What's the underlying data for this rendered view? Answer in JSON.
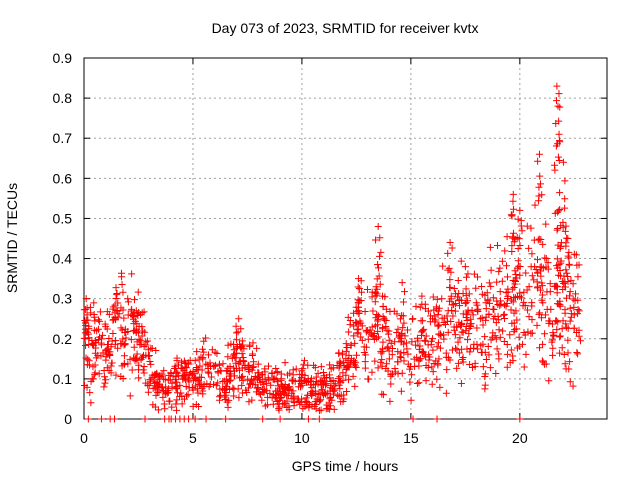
{
  "chart_data": {
    "type": "scatter",
    "title": "Day 073 of 2023, SRMTID for receiver kvtx",
    "xlabel": "GPS time / hours",
    "ylabel": "SRMTID / TECUs",
    "xlim": [
      0,
      24
    ],
    "ylim": [
      0,
      0.9
    ],
    "xticks": [
      0,
      5,
      10,
      15,
      20
    ],
    "yticks": [
      0,
      0.1,
      0.2,
      0.3,
      0.4,
      0.5,
      0.6,
      0.7,
      0.8,
      0.9
    ],
    "xtick_labels": [
      "0",
      "5",
      "10",
      "15",
      "20"
    ],
    "ytick_labels": [
      "0",
      "0.1",
      "0.2",
      "0.3",
      "0.4",
      "0.5",
      "0.6",
      "0.7",
      "0.8",
      "0.9"
    ],
    "grid": true,
    "marker": "plus",
    "color": "#ff0000",
    "trend": [
      {
        "x": 0.0,
        "y": 0.2
      },
      {
        "x": 0.5,
        "y": 0.19
      },
      {
        "x": 1.0,
        "y": 0.17
      },
      {
        "x": 1.5,
        "y": 0.24
      },
      {
        "x": 2.0,
        "y": 0.2
      },
      {
        "x": 2.5,
        "y": 0.21
      },
      {
        "x": 3.0,
        "y": 0.12
      },
      {
        "x": 3.5,
        "y": 0.08
      },
      {
        "x": 4.0,
        "y": 0.07
      },
      {
        "x": 4.5,
        "y": 0.1
      },
      {
        "x": 5.0,
        "y": 0.11
      },
      {
        "x": 5.5,
        "y": 0.12
      },
      {
        "x": 6.0,
        "y": 0.1
      },
      {
        "x": 6.5,
        "y": 0.09
      },
      {
        "x": 7.0,
        "y": 0.14
      },
      {
        "x": 7.5,
        "y": 0.13
      },
      {
        "x": 8.0,
        "y": 0.1
      },
      {
        "x": 8.5,
        "y": 0.08
      },
      {
        "x": 9.0,
        "y": 0.07
      },
      {
        "x": 9.5,
        "y": 0.07
      },
      {
        "x": 10.0,
        "y": 0.08
      },
      {
        "x": 10.5,
        "y": 0.08
      },
      {
        "x": 11.0,
        "y": 0.07
      },
      {
        "x": 11.5,
        "y": 0.08
      },
      {
        "x": 12.0,
        "y": 0.13
      },
      {
        "x": 12.5,
        "y": 0.2
      },
      {
        "x": 13.0,
        "y": 0.2
      },
      {
        "x": 13.5,
        "y": 0.23
      },
      {
        "x": 14.0,
        "y": 0.2
      },
      {
        "x": 14.5,
        "y": 0.17
      },
      {
        "x": 15.0,
        "y": 0.16
      },
      {
        "x": 15.5,
        "y": 0.2
      },
      {
        "x": 16.0,
        "y": 0.21
      },
      {
        "x": 16.5,
        "y": 0.22
      },
      {
        "x": 17.0,
        "y": 0.23
      },
      {
        "x": 17.5,
        "y": 0.23
      },
      {
        "x": 18.0,
        "y": 0.24
      },
      {
        "x": 18.5,
        "y": 0.24
      },
      {
        "x": 19.0,
        "y": 0.25
      },
      {
        "x": 19.5,
        "y": 0.3
      },
      {
        "x": 20.0,
        "y": 0.28
      },
      {
        "x": 20.5,
        "y": 0.32
      },
      {
        "x": 21.0,
        "y": 0.33
      },
      {
        "x": 21.5,
        "y": 0.25
      },
      {
        "x": 22.0,
        "y": 0.3
      },
      {
        "x": 22.5,
        "y": 0.26
      },
      {
        "x": 22.8,
        "y": 0.25
      }
    ],
    "peaks": [
      {
        "x": 0.1,
        "y": 0.3
      },
      {
        "x": 1.5,
        "y": 0.31
      },
      {
        "x": 2.4,
        "y": 0.27
      },
      {
        "x": 7.1,
        "y": 0.25
      },
      {
        "x": 12.6,
        "y": 0.35
      },
      {
        "x": 13.5,
        "y": 0.48
      },
      {
        "x": 14.6,
        "y": 0.34
      },
      {
        "x": 16.8,
        "y": 0.44
      },
      {
        "x": 17.5,
        "y": 0.38
      },
      {
        "x": 19.7,
        "y": 0.56
      },
      {
        "x": 20.0,
        "y": 0.52
      },
      {
        "x": 20.9,
        "y": 0.66
      },
      {
        "x": 21.7,
        "y": 0.83
      },
      {
        "x": 21.75,
        "y": 0.78
      },
      {
        "x": 21.8,
        "y": 0.71
      },
      {
        "x": 22.0,
        "y": 0.64
      },
      {
        "x": 22.2,
        "y": 0.45
      }
    ],
    "zero_points_x": [
      0.2,
      0.8,
      1.2,
      1.4,
      2.8,
      3.7,
      3.9,
      4.0,
      4.2,
      4.4,
      4.6,
      4.8,
      5.1,
      5.6,
      6.5,
      8.2,
      9.0,
      10.3,
      10.8,
      15.1,
      16.2,
      20.0
    ]
  }
}
